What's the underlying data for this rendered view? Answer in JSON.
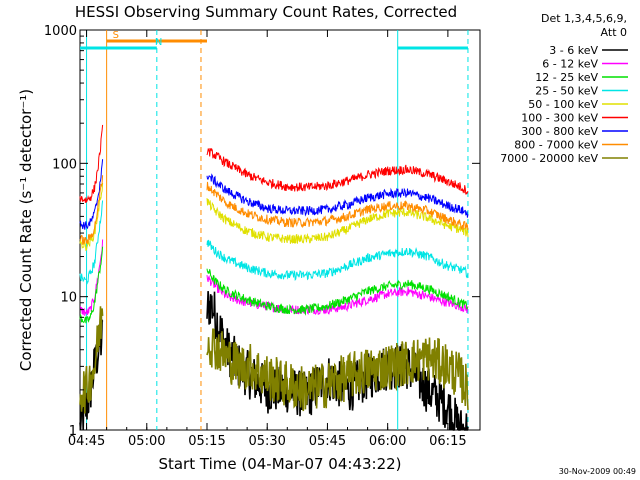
{
  "chart_data": {
    "type": "line",
    "title": "HESSI Observing Summary Count Rates, Corrected",
    "xlabel": "Start Time (04-Mar-07 04:43:22)",
    "ylabel": "Corrected Count Rate (s⁻¹ detector⁻¹)",
    "x_unit": "UT time (HH:MM)",
    "xlim": [
      "04:43:22",
      "06:23:00"
    ],
    "ylim": [
      1,
      1000
    ],
    "yscale": "log",
    "grid": false,
    "legend_position": "top-right outside",
    "x_ticks": [
      "04:45",
      "05:00",
      "05:15",
      "05:30",
      "05:45",
      "06:00",
      "06:15"
    ],
    "y_ticks": [
      1,
      10,
      100,
      1000
    ],
    "y_tick_labels": [
      "1",
      "10",
      "100",
      "1000"
    ],
    "legend_header": [
      "Det 1,3,4,5,6,9,",
      "Att 0"
    ],
    "timestamp": "30-Nov-2009 00:49",
    "markers": {
      "S": {
        "label": "S",
        "color": "#ff8c00",
        "start": "04:43:22",
        "end": "05:15:00",
        "lines": [
          "04:50:00",
          "05:13:30"
        ],
        "top_bar": "04:50:00-05:15:00"
      },
      "N": {
        "label": "N",
        "color": "#00e5e5",
        "start": "04:43:22",
        "end": "05:02:30",
        "lines": [
          "04:45:00",
          "05:02:30"
        ],
        "top_bar": "04:43:22-05:02:30"
      },
      "N2": {
        "label": "",
        "color": "#00e5e5",
        "start": "06:02:30",
        "end": "06:20:00",
        "lines": [
          "06:02:30",
          "06:20:00"
        ],
        "top_bar": "06:02:30-06:20:00"
      }
    },
    "series": [
      {
        "name": "3 - 6 keV",
        "color": "#000000",
        "segments": [
          {
            "t": [
              "04:43:22",
              "04:45:00",
              "04:46:00",
              "04:47:00",
              "04:48:00",
              "04:49:00"
            ],
            "y": [
              1,
              1.5,
              2,
              3,
              4,
              5
            ]
          },
          {
            "t": [
              "05:15:00",
              "05:16:00",
              "05:18:00",
              "05:20:00",
              "05:23:00",
              "05:26:00",
              "05:30:00",
              "05:35:00",
              "05:40:00",
              "05:45:00",
              "05:50:00",
              "05:55:00",
              "06:00:00",
              "06:05:00",
              "06:10:00",
              "06:15:00",
              "06:18:00",
              "06:20:00"
            ],
            "y": [
              8,
              9,
              6,
              4,
              3,
              2.5,
              2,
              2,
              1.8,
              2.5,
              2,
              2.5,
              3,
              3,
              2,
              1.5,
              1,
              1
            ]
          }
        ]
      },
      {
        "name": "6 - 12 keV",
        "color": "#ff00ff",
        "segments": [
          {
            "t": [
              "04:43:22",
              "04:45:00",
              "04:46:00",
              "04:47:00",
              "04:48:00",
              "04:49:00"
            ],
            "y": [
              8,
              7.5,
              8,
              10,
              15,
              25
            ]
          },
          {
            "t": [
              "05:15:00",
              "05:17:00",
              "05:20:00",
              "05:25:00",
              "05:30:00",
              "05:35:00",
              "05:40:00",
              "05:45:00",
              "05:50:00",
              "05:55:00",
              "06:00:00",
              "06:05:00",
              "06:10:00",
              "06:15:00",
              "06:18:00",
              "06:20:00"
            ],
            "y": [
              14,
              12,
              10,
              9,
              8.5,
              8,
              8,
              8,
              8.5,
              9.5,
              10.5,
              11,
              10,
              9,
              8.5,
              8
            ]
          }
        ]
      },
      {
        "name": "12 - 25 keV",
        "color": "#00e000",
        "segments": [
          {
            "t": [
              "04:43:22",
              "04:45:00",
              "04:46:00",
              "04:47:00",
              "04:48:00",
              "04:49:00"
            ],
            "y": [
              7,
              6.5,
              7,
              9,
              14,
              22
            ]
          },
          {
            "t": [
              "05:15:00",
              "05:17:00",
              "05:20:00",
              "05:25:00",
              "05:30:00",
              "05:35:00",
              "05:40:00",
              "05:45:00",
              "05:50:00",
              "05:55:00",
              "06:00:00",
              "06:05:00",
              "06:10:00",
              "06:15:00",
              "06:18:00",
              "06:20:00"
            ],
            "y": [
              16,
              13,
              11,
              9.5,
              8.5,
              8,
              8,
              8.5,
              9.5,
              11,
              12,
              12.5,
              11.5,
              10,
              9,
              8.5
            ]
          }
        ]
      },
      {
        "name": "25 - 50 keV",
        "color": "#00e5e5",
        "segments": [
          {
            "t": [
              "04:43:22",
              "04:45:00",
              "04:46:00",
              "04:47:00",
              "04:48:00",
              "04:49:00"
            ],
            "y": [
              14,
              13,
              15,
              18,
              30,
              50
            ]
          },
          {
            "t": [
              "05:15:00",
              "05:17:00",
              "05:20:00",
              "05:25:00",
              "05:30:00",
              "05:35:00",
              "05:40:00",
              "05:45:00",
              "05:50:00",
              "05:55:00",
              "06:00:00",
              "06:05:00",
              "06:10:00",
              "06:15:00",
              "06:18:00",
              "06:20:00"
            ],
            "y": [
              26,
              22,
              19,
              16.5,
              15,
              14.5,
              14.5,
              15,
              17,
              19.5,
              21,
              22,
              20,
              17,
              16,
              15
            ]
          }
        ]
      },
      {
        "name": "50 - 100 keV",
        "color": "#e0e000",
        "segments": [
          {
            "t": [
              "04:43:22",
              "04:45:00",
              "04:46:00",
              "04:47:00",
              "04:48:00",
              "04:49:00"
            ],
            "y": [
              25,
              24,
              26,
              30,
              45,
              70
            ]
          },
          {
            "t": [
              "05:15:00",
              "05:17:00",
              "05:20:00",
              "05:25:00",
              "05:30:00",
              "05:35:00",
              "05:40:00",
              "05:45:00",
              "05:50:00",
              "05:55:00",
              "06:00:00",
              "06:05:00",
              "06:10:00",
              "06:15:00",
              "06:18:00",
              "06:20:00"
            ],
            "y": [
              52,
              44,
              37,
              31,
              28,
              27,
              27,
              28,
              32,
              38,
              42,
              43,
              39,
              34,
              32,
              30
            ]
          }
        ]
      },
      {
        "name": "100 - 300 keV",
        "color": "#ff0000",
        "segments": [
          {
            "t": [
              "04:43:22",
              "04:45:00",
              "04:46:00",
              "04:47:00",
              "04:48:00",
              "04:49:00"
            ],
            "y": [
              55,
              53,
              56,
              65,
              100,
              180
            ]
          },
          {
            "t": [
              "05:15:00",
              "05:17:00",
              "05:20:00",
              "05:25:00",
              "05:30:00",
              "05:35:00",
              "05:40:00",
              "05:45:00",
              "05:50:00",
              "05:55:00",
              "06:00:00",
              "06:05:00",
              "06:10:00",
              "06:15:00",
              "06:18:00",
              "06:20:00"
            ],
            "y": [
              125,
              115,
              100,
              82,
              72,
              67,
              66,
              68,
              74,
              82,
              88,
              90,
              83,
              73,
              67,
              62
            ]
          }
        ]
      },
      {
        "name": "300 - 800 keV",
        "color": "#0000ff",
        "segments": [
          {
            "t": [
              "04:43:22",
              "04:45:00",
              "04:46:00",
              "04:47:00",
              "04:48:00",
              "04:49:00"
            ],
            "y": [
              35,
              34,
              36,
              42,
              60,
              100
            ]
          },
          {
            "t": [
              "05:15:00",
              "05:17:00",
              "05:20:00",
              "05:25:00",
              "05:30:00",
              "05:35:00",
              "05:40:00",
              "05:45:00",
              "05:50:00",
              "05:55:00",
              "06:00:00",
              "06:05:00",
              "06:10:00",
              "06:15:00",
              "06:18:00",
              "06:20:00"
            ],
            "y": [
              82,
              73,
              62,
              52,
              46,
              44,
              44,
              45,
              49,
              55,
              59,
              60,
              55,
              48,
              45,
              42
            ]
          }
        ]
      },
      {
        "name": "800 - 7000 keV",
        "color": "#ff8c00",
        "segments": [
          {
            "t": [
              "04:43:22",
              "04:45:00",
              "04:46:00",
              "04:47:00",
              "04:48:00",
              "04:49:00"
            ],
            "y": [
              27,
              26,
              28,
              33,
              50,
              80
            ]
          },
          {
            "t": [
              "05:15:00",
              "05:17:00",
              "05:20:00",
              "05:25:00",
              "05:30:00",
              "05:35:00",
              "05:40:00",
              "05:45:00",
              "05:50:00",
              "05:55:00",
              "06:00:00",
              "06:05:00",
              "06:10:00",
              "06:15:00",
              "06:18:00",
              "06:20:00"
            ],
            "y": [
              68,
              60,
              50,
              42,
              38,
              36,
              36,
              37,
              40,
              45,
              48,
              48,
              44,
              38,
              35,
              33
            ]
          }
        ]
      },
      {
        "name": "7000 - 20000 keV",
        "color": "#808000",
        "segments": [
          {
            "t": [
              "04:43:22",
              "04:45:00",
              "04:46:00",
              "04:47:00",
              "04:48:00",
              "04:49:00"
            ],
            "y": [
              2,
              2,
              2.5,
              3,
              5,
              8
            ]
          },
          {
            "t": [
              "05:15:00",
              "05:16:00",
              "05:18:00",
              "05:20:00",
              "05:23:00",
              "05:26:00",
              "05:30:00",
              "05:35:00",
              "05:40:00",
              "05:45:00",
              "05:50:00",
              "05:55:00",
              "06:00:00",
              "06:05:00",
              "06:10:00",
              "06:15:00",
              "06:18:00",
              "06:20:00"
            ],
            "y": [
              5,
              4.5,
              4,
              3.5,
              3,
              3,
              2.5,
              2.2,
              2,
              2.2,
              2.5,
              2.8,
              3,
              3.2,
              3.5,
              3,
              2.5,
              2
            ]
          }
        ]
      }
    ]
  }
}
